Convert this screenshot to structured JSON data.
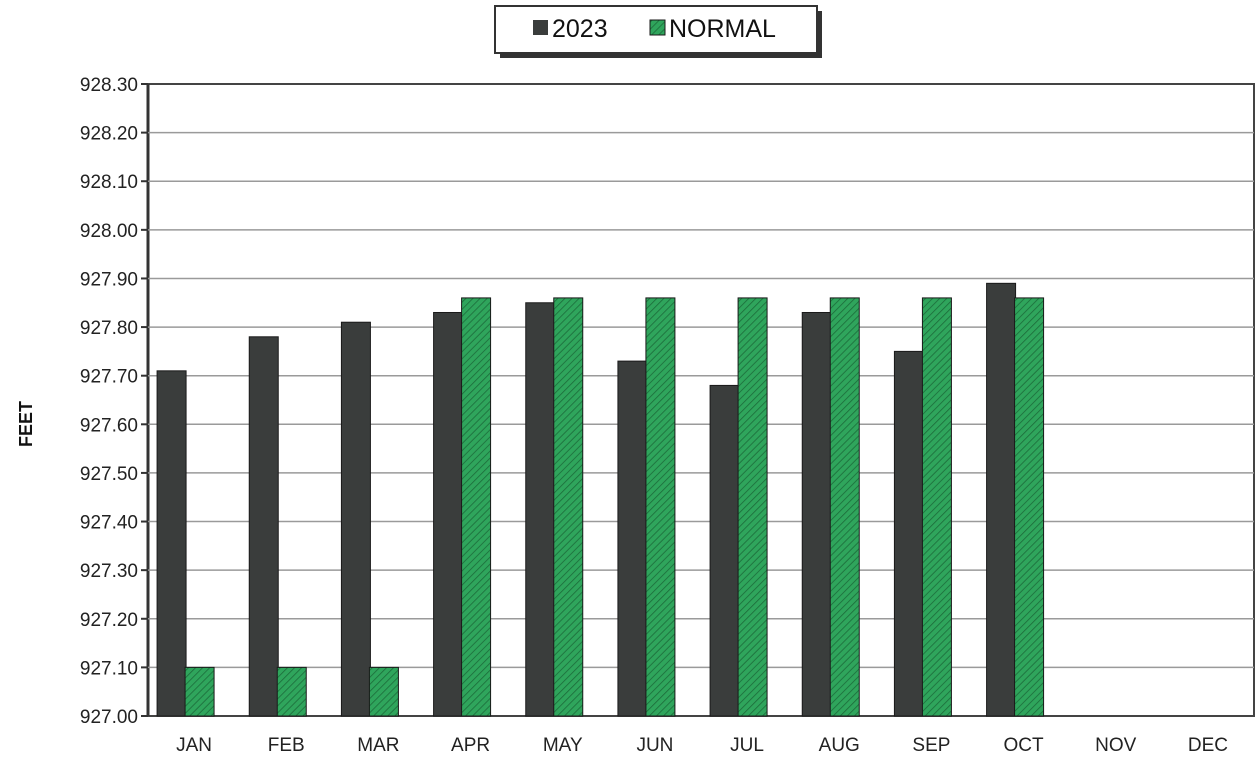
{
  "chart_data": {
    "type": "bar",
    "title": "",
    "xlabel": "",
    "ylabel": "FEET",
    "categories": [
      "JAN",
      "FEB",
      "MAR",
      "APR",
      "MAY",
      "JUN",
      "JUL",
      "AUG",
      "SEP",
      "OCT",
      "NOV",
      "DEC"
    ],
    "series": [
      {
        "name": "2023",
        "color": "#3a3d3c",
        "values": [
          927.71,
          927.78,
          927.81,
          927.83,
          927.85,
          927.73,
          927.68,
          927.83,
          927.75,
          927.89,
          null,
          null
        ]
      },
      {
        "name": "NORMAL",
        "color": "#2fa55c",
        "values": [
          927.1,
          927.1,
          927.1,
          927.86,
          927.86,
          927.86,
          927.86,
          927.86,
          927.86,
          927.86,
          null,
          null
        ]
      }
    ],
    "ylim": [
      927.0,
      928.3
    ],
    "yticks": [
      "928.30",
      "928.20",
      "928.10",
      "928.00",
      "927.90",
      "927.80",
      "927.70",
      "927.60",
      "927.50",
      "927.40",
      "927.30",
      "927.20",
      "927.10",
      "927.00"
    ],
    "grid": true,
    "legend_position": "top-center"
  }
}
